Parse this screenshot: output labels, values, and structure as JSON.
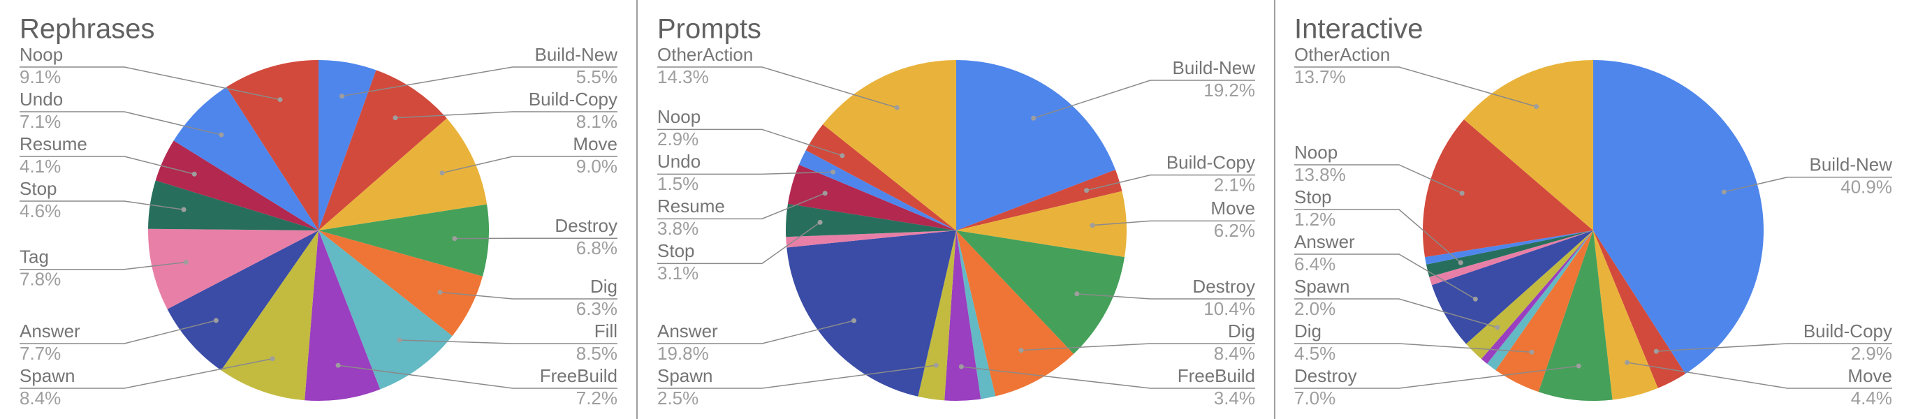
{
  "chart_data": [
    {
      "type": "pie",
      "title": "Rephrases",
      "categories": [
        "Build-New",
        "Build-Copy",
        "Move",
        "Destroy",
        "Dig",
        "Fill",
        "FreeBuild",
        "Spawn",
        "Answer",
        "Tag",
        "Stop",
        "Resume",
        "Undo",
        "Noop"
      ],
      "values": [
        5.5,
        8.1,
        9.0,
        6.8,
        6.3,
        8.5,
        7.2,
        8.4,
        7.7,
        7.8,
        4.6,
        4.1,
        7.1,
        9.1
      ],
      "value_labels": [
        "5.5%",
        "8.1%",
        "9.0%",
        "6.8%",
        "6.3%",
        "8.5%",
        "7.2%",
        "8.4%",
        "7.7%",
        "7.8%",
        "4.6%",
        "4.1%",
        "7.1%",
        "9.1%"
      ],
      "colors": [
        "#4f86ec",
        "#d24a3c",
        "#e9b33b",
        "#45a05a",
        "#ee7535",
        "#63b9c4",
        "#9a3fbf",
        "#c2bb40",
        "#3a4ca6",
        "#e87fa7",
        "#276f5c",
        "#b2284f",
        "#4f86ec",
        "#d24a3c"
      ]
    },
    {
      "type": "pie",
      "title": "Prompts",
      "categories": [
        "Build-New",
        "Build-Copy",
        "Move",
        "Destroy",
        "Dig",
        null,
        "FreeBuild",
        "Spawn",
        "Answer",
        null,
        "Stop",
        "Resume",
        "Undo",
        "Noop",
        "OtherAction"
      ],
      "values": [
        19.2,
        2.1,
        6.2,
        10.4,
        8.4,
        1.4,
        3.4,
        2.5,
        19.8,
        1.0,
        3.1,
        3.8,
        1.5,
        2.9,
        14.3
      ],
      "value_labels": [
        "19.2%",
        "2.1%",
        "6.2%",
        "10.4%",
        "8.4%",
        null,
        "3.4%",
        "2.5%",
        "19.8%",
        null,
        "3.1%",
        "3.8%",
        "1.5%",
        "2.9%",
        "14.3%"
      ],
      "colors": [
        "#4f86ec",
        "#d24a3c",
        "#e9b33b",
        "#45a05a",
        "#ee7535",
        "#63b9c4",
        "#9a3fbf",
        "#c2bb40",
        "#3a4ca6",
        "#e87fa7",
        "#276f5c",
        "#b2284f",
        "#4f86ec",
        "#d24a3c",
        "#e9b33b"
      ]
    },
    {
      "type": "pie",
      "title": "Interactive",
      "categories": [
        "Build-New",
        "Build-Copy",
        "Move",
        "Destroy",
        "Dig",
        null,
        null,
        "Spawn",
        "Answer",
        null,
        "Stop",
        null,
        "Noop",
        "OtherAction"
      ],
      "values": [
        40.9,
        2.9,
        4.4,
        7.0,
        4.5,
        1.0,
        0.7,
        2.0,
        6.4,
        0.8,
        1.2,
        0.7,
        13.8,
        13.7
      ],
      "value_labels": [
        "40.9%",
        "2.9%",
        "4.4%",
        "7.0%",
        "4.5%",
        null,
        null,
        "2.0%",
        "6.4%",
        null,
        "1.2%",
        null,
        "13.8%",
        "13.7%"
      ],
      "colors": [
        "#4f86ec",
        "#d24a3c",
        "#e9b33b",
        "#45a05a",
        "#ee7535",
        "#63b9c4",
        "#9a3fbf",
        "#c2bb40",
        "#3a4ca6",
        "#e87fa7",
        "#276f5c",
        "#4f86ec",
        "#d24a3c",
        "#e9b33b"
      ]
    }
  ]
}
